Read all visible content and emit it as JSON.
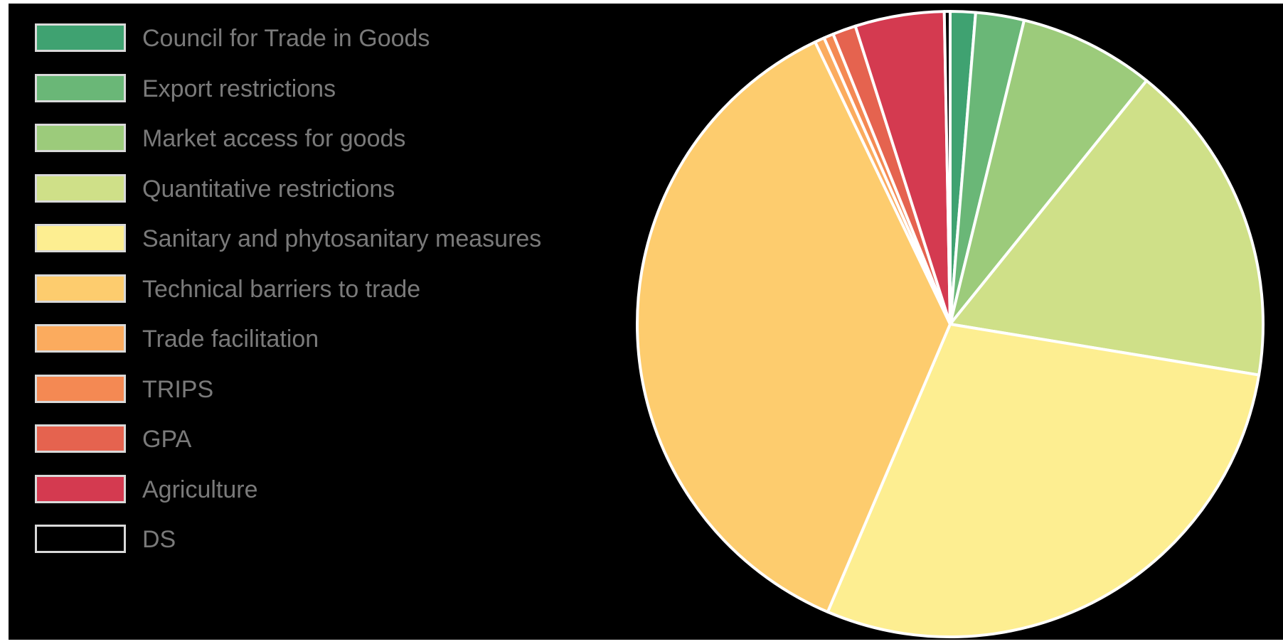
{
  "chart_data": {
    "type": "pie",
    "title": "",
    "legend_position": "left",
    "slice_border_color": "#ffffff",
    "background_color": "#000000",
    "slices": [
      {
        "label": "Council for Trade in Goods",
        "value": 1.3,
        "color": "#3fa271"
      },
      {
        "label": "Export restrictions",
        "value": 2.5,
        "color": "#6ab777"
      },
      {
        "label": "Market access for goods",
        "value": 7.0,
        "color": "#9ccb7b"
      },
      {
        "label": "Quantitative restrictions",
        "value": 16.8,
        "color": "#cfe088"
      },
      {
        "label": "Sanitary and phytosanitary measures",
        "value": 28.8,
        "color": "#fdee91"
      },
      {
        "label": "Technical barriers to trade",
        "value": 36.5,
        "color": "#fdcc6e"
      },
      {
        "label": "Trade facilitation",
        "value": 0.5,
        "color": "#fbab5e"
      },
      {
        "label": "TRIPS",
        "value": 0.5,
        "color": "#f48953"
      },
      {
        "label": "GPA",
        "value": 1.2,
        "color": "#e5634f"
      },
      {
        "label": "Agriculture",
        "value": 4.6,
        "color": "#d43a50"
      },
      {
        "label": "DS",
        "value": 0.3,
        "color": "#000000"
      }
    ]
  }
}
